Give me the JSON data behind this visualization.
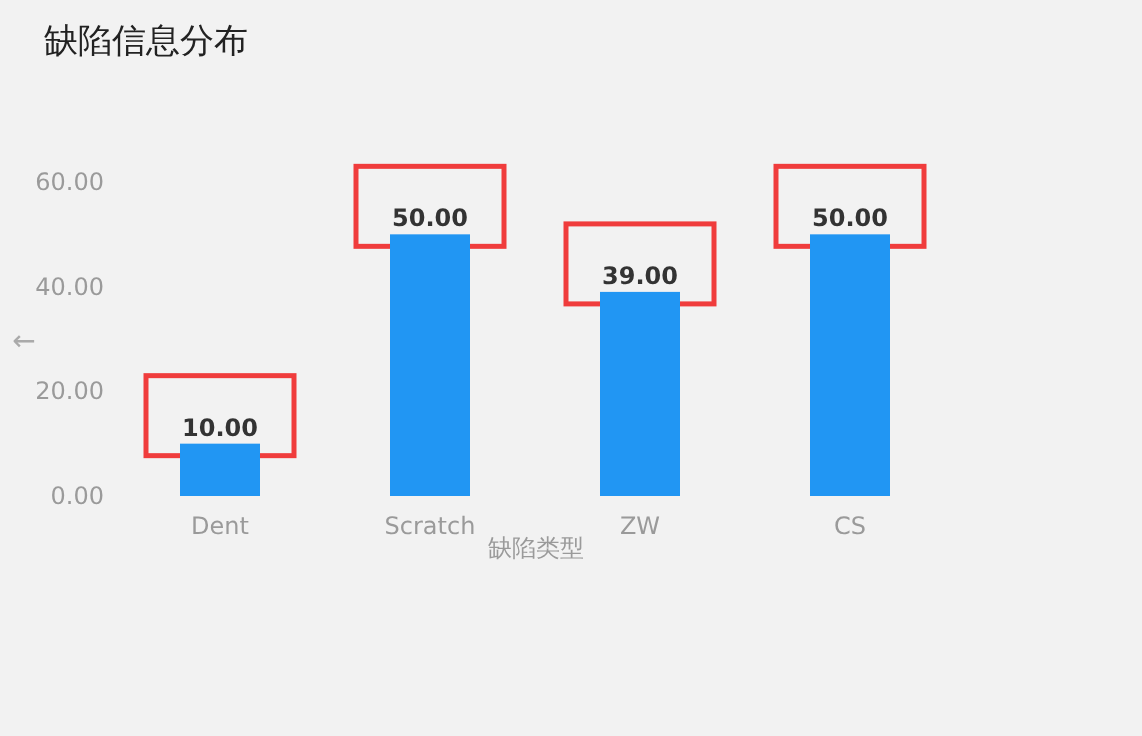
{
  "chart_data": {
    "type": "bar",
    "title": "缺陷信息分布",
    "xlabel": "缺陷类型",
    "ylabel": "←",
    "categories": [
      "Dent",
      "Scratch",
      "ZW",
      "CS"
    ],
    "values": [
      10,
      50,
      39,
      50
    ],
    "color": "#2196f3",
    "value_labels": [
      "10.00",
      "50.00",
      "39.00",
      "50.00"
    ],
    "ylim": [
      0,
      60
    ],
    "yticks": [
      {
        "value": 0,
        "label": "0.00"
      },
      {
        "value": 20,
        "label": "20.00"
      },
      {
        "value": 40,
        "label": "40.00"
      },
      {
        "value": 60,
        "label": "60.00"
      }
    ],
    "grid": false
  }
}
